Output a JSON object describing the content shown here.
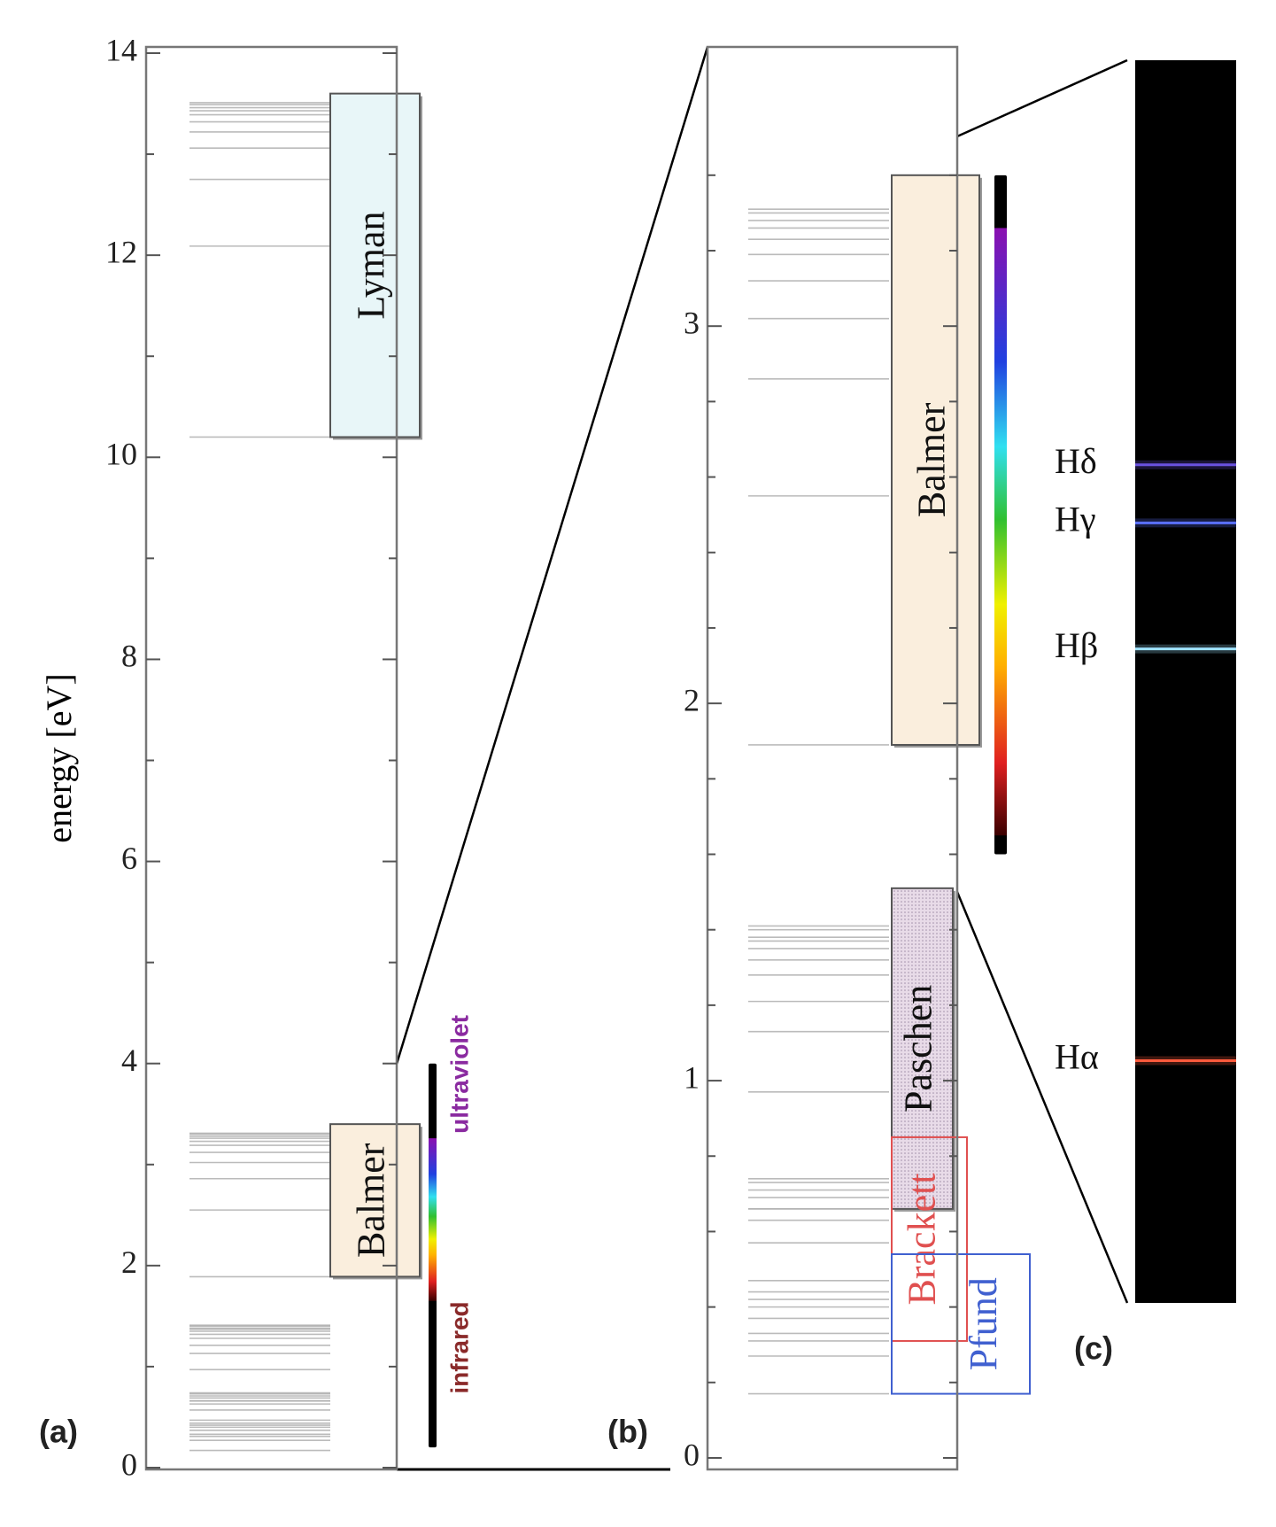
{
  "chart_data": {
    "type": "energy-levels",
    "ylabel": "energy [eV]",
    "panels": [
      {
        "label": "(a)",
        "ylim": [
          0,
          14
        ],
        "yticks": [
          0,
          2,
          4,
          6,
          8,
          10,
          12,
          14
        ],
        "minor_yticks": [
          1,
          3,
          5,
          7,
          9,
          11,
          13
        ],
        "spectrum_bar": [
          0.2,
          4
        ]
      },
      {
        "label": "(b)",
        "ylim": [
          0,
          3.74
        ],
        "yticks": [
          0,
          1,
          2,
          3
        ],
        "minor_yticks": [
          0.2,
          0.4,
          0.6,
          0.8,
          1.2,
          1.4,
          1.6,
          1.8,
          2.2,
          2.4,
          2.6,
          2.8,
          3.2,
          3.4
        ],
        "spectrum_bar": [
          1.6,
          3.4
        ]
      },
      {
        "label": "(c)",
        "lim": [
          243,
          756
        ],
        "lines": [
          {
            "name": "Hδ",
            "wavelength": 410,
            "color": "#6a52e0"
          },
          {
            "name": "Hγ",
            "wavelength": 434,
            "color": "#5a70ff"
          },
          {
            "name": "Hβ",
            "wavelength": 486,
            "color": "#9fe2ff"
          },
          {
            "name": "Hα",
            "wavelength": 656,
            "color": "#ff5a3c"
          }
        ]
      }
    ],
    "visible": [
      1.65,
      3.26
    ],
    "region_labels": {
      "ultraviolet": "ultraviolet",
      "infrared": "infrared"
    },
    "series": [
      {
        "name": "Lyman",
        "limit": 13.6,
        "fill": "#e8f6f8",
        "stroke": "#555555",
        "box_panels": [
          0
        ],
        "values": [
          10.2,
          12.09,
          12.75,
          13.06,
          13.22,
          13.32,
          13.39,
          13.43,
          13.46,
          13.49,
          13.51
        ]
      },
      {
        "name": "Balmer",
        "limit": 3.4,
        "fill": "#faeedd",
        "stroke": "#555555",
        "box_panels": [
          0,
          1
        ],
        "values": [
          1.89,
          2.55,
          2.86,
          3.02,
          3.12,
          3.19,
          3.23,
          3.26,
          3.28,
          3.3,
          3.31
        ]
      },
      {
        "name": "Paschen",
        "limit": 1.51,
        "fill": "#e6d8e6",
        "stroke": "#555555",
        "box_panels": [
          1
        ],
        "values": [
          0.66,
          0.97,
          1.13,
          1.21,
          1.28,
          1.32,
          1.35,
          1.37,
          1.38,
          1.4,
          1.41
        ]
      },
      {
        "name": "Brackett",
        "limit": 0.85,
        "fill": "none",
        "stroke": "#e05050",
        "box_panels": [
          1
        ],
        "values": [
          0.31,
          0.47,
          0.57,
          0.63,
          0.66,
          0.69,
          0.71,
          0.73,
          0.74
        ]
      },
      {
        "name": "Pfund",
        "limit": 0.54,
        "fill": "none",
        "stroke": "#4060d0",
        "box_panels": [
          1
        ],
        "values": [
          0.17,
          0.27,
          0.33,
          0.37,
          0.4,
          0.42,
          0.44
        ]
      }
    ]
  }
}
